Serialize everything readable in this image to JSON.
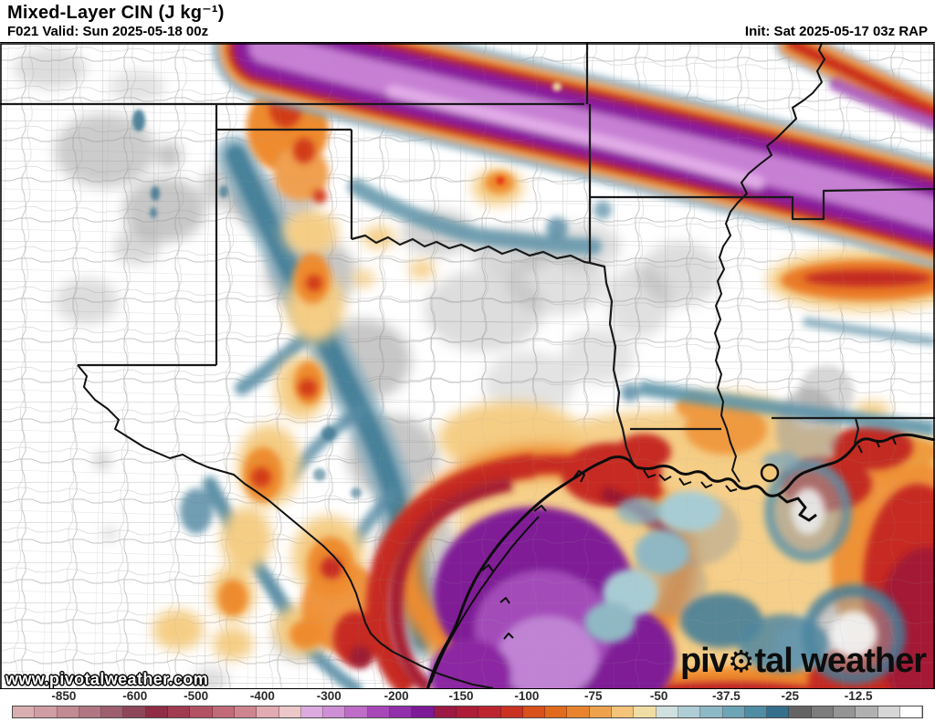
{
  "header": {
    "title": "Mixed-Layer CIN (J kg⁻¹)",
    "valid_label": "F021 Valid: Sun 2025-05-18 00z",
    "init_label": "Init: Sat 2025-05-17 03z RAP"
  },
  "map": {
    "watermark": "www.pivotalweather.com",
    "logo_part1": "piv",
    "logo_gear": "⚙",
    "logo_part2": "tal weather"
  },
  "colorbar": {
    "ticks": [
      {
        "label": "-850",
        "pos": 5.7
      },
      {
        "label": "-600",
        "pos": 13.5
      },
      {
        "label": "-500",
        "pos": 20.2
      },
      {
        "label": "-400",
        "pos": 27.5
      },
      {
        "label": "-300",
        "pos": 34.8
      },
      {
        "label": "-200",
        "pos": 42.2
      },
      {
        "label": "-150",
        "pos": 49.3
      },
      {
        "label": "-100",
        "pos": 56.5
      },
      {
        "label": "-75",
        "pos": 63.8
      },
      {
        "label": "-50",
        "pos": 71.0
      },
      {
        "label": "-37.5",
        "pos": 78.4
      },
      {
        "label": "-25",
        "pos": 85.4
      },
      {
        "label": "-12.5",
        "pos": 92.9
      }
    ],
    "segments": [
      "#d9aeb1",
      "#cf9da3",
      "#c28b94",
      "#b07682",
      "#9d5f6e",
      "#8d4759",
      "#8f2d47",
      "#a03b50",
      "#b25364",
      "#c16b79",
      "#cf8590",
      "#e2abb1",
      "#ecc7c9",
      "#dcaade",
      "#cf8fd6",
      "#bf6cc8",
      "#a847b8",
      "#9130aa",
      "#7d1a96",
      "#9c1a44",
      "#ad1d38",
      "#bc2430",
      "#ca3222",
      "#d8501a",
      "#e16a1c",
      "#e9842e",
      "#eea24e",
      "#f2c379",
      "#f0dda4",
      "#cfe0df",
      "#aecdd6",
      "#8db8c6",
      "#6da4b6",
      "#4f8da4",
      "#356f8c",
      "#646464",
      "#7c7c7c",
      "#949494",
      "#b0b0b0",
      "#d6d6d6",
      "#ffffff"
    ]
  }
}
